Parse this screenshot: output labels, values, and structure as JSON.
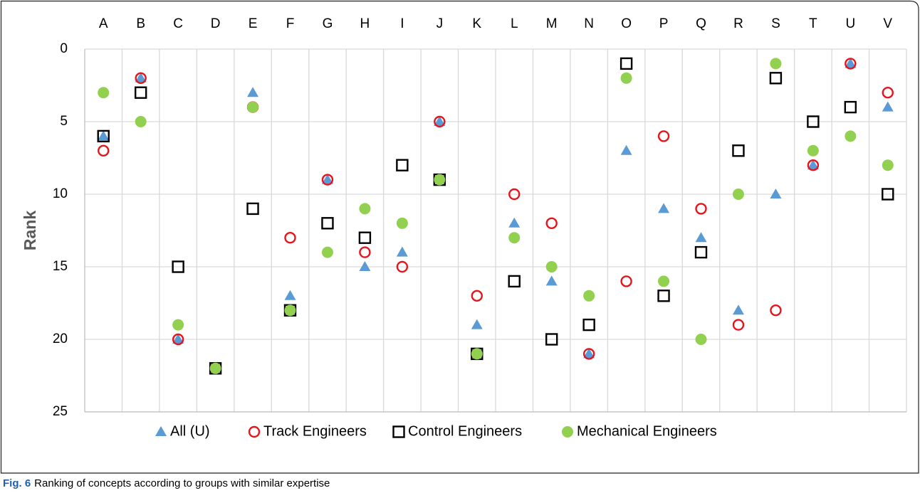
{
  "chart_data": {
    "type": "scatter",
    "y_label": "Rank",
    "figure_label": "Fig. 6",
    "caption": "Ranking of concepts according to groups with similar expertise",
    "categories": [
      "A",
      "B",
      "C",
      "D",
      "E",
      "F",
      "G",
      "H",
      "I",
      "J",
      "K",
      "L",
      "M",
      "N",
      "O",
      "P",
      "Q",
      "R",
      "S",
      "T",
      "U",
      "V"
    ],
    "series": [
      {
        "name": "All (U)",
        "color": "#5b9bd5",
        "marker": "triangle",
        "filled": true,
        "values": [
          6,
          2,
          20,
          22,
          3,
          17,
          9,
          15,
          14,
          5,
          19,
          12,
          16,
          21,
          7,
          11,
          13,
          18,
          10,
          8,
          1,
          4
        ]
      },
      {
        "name": "Track Engineers",
        "color": "#e8141b",
        "marker": "circle",
        "filled": false,
        "values": [
          7,
          2,
          20,
          22,
          4,
          13,
          9,
          14,
          15,
          5,
          17,
          10,
          12,
          21,
          16,
          6,
          11,
          19,
          18,
          8,
          1,
          3
        ]
      },
      {
        "name": "Control Engineers",
        "color": "#000000",
        "marker": "square",
        "filled": false,
        "values": [
          6,
          3,
          15,
          22,
          11,
          18,
          12,
          13,
          8,
          9,
          21,
          16,
          20,
          19,
          1,
          17,
          14,
          7,
          2,
          5,
          4,
          10
        ]
      },
      {
        "name": "Mechanical Engineers",
        "color": "#92d050",
        "marker": "circle",
        "filled": true,
        "values": [
          3,
          5,
          19,
          22,
          4,
          18,
          14,
          11,
          12,
          9,
          21,
          13,
          15,
          17,
          2,
          16,
          20,
          10,
          1,
          7,
          6,
          8
        ]
      }
    ],
    "ylim": [
      25,
      0
    ],
    "yticks": [
      0,
      5,
      10,
      15,
      20,
      25
    ],
    "grid": true,
    "legend": "bottom"
  }
}
